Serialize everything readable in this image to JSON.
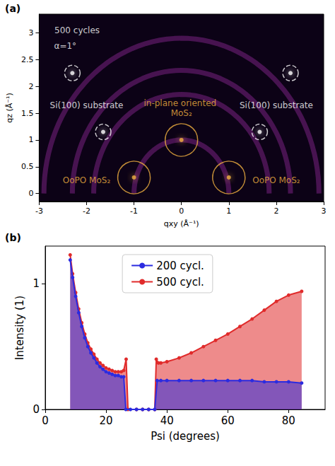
{
  "chart_data": [
    {
      "type": "scatter",
      "panel_label": "(a)",
      "x_label": "qxy (Å⁻¹)",
      "y_label": "qz (Å⁻¹)",
      "xlim": [
        -3,
        3
      ],
      "ylim": [
        -0.15,
        3.35
      ],
      "xticks": [
        -3,
        -2,
        -1,
        0,
        1,
        2,
        3
      ],
      "yticks": [
        0,
        0.5,
        1,
        1.5,
        2,
        2.5,
        3
      ],
      "grid": false,
      "tick_labels": true,
      "rings": [
        1.0,
        1.85,
        2.3,
        2.9
      ],
      "series": [
        {
          "color": "#ffffff",
          "marker": "circle",
          "line_style": "dashed",
          "x": [
            -2.3,
            -1.65,
            1.65,
            2.3
          ],
          "y": [
            2.25,
            1.15,
            1.15,
            2.25
          ]
        },
        {
          "color": "#f0b040",
          "marker": "circle",
          "line_style": "solid",
          "x": [
            0
          ],
          "y": [
            1.0
          ]
        },
        {
          "color": "#f0b040",
          "marker": "circle",
          "line_style": "solid",
          "x": [
            -1,
            1
          ],
          "y": [
            0.3,
            0.3
          ]
        }
      ],
      "annotations": [
        {
          "text": "500 cycles",
          "x": -2.2,
          "y": 3.05,
          "color": "#ffffff"
        },
        {
          "text": "α=1°",
          "x": -2.45,
          "y": 2.75,
          "color": "#ffffff"
        },
        {
          "text": "Si(100) substrate",
          "x": -2.0,
          "y": 1.65,
          "color": "#ffffff"
        },
        {
          "text": "Si(100) substrate",
          "x": 2.0,
          "y": 1.65,
          "color": "#ffffff"
        },
        {
          "text": "in-plane oriented MoS₂",
          "x": 0,
          "y": 1.6,
          "color": "#f0b040"
        },
        {
          "text": "OoPO MoS₂",
          "x": -2.0,
          "y": 0.25,
          "color": "#f0b040"
        },
        {
          "text": "OoPO MoS₂",
          "x": 2.0,
          "y": 0.25,
          "color": "#f0b040"
        }
      ]
    },
    {
      "type": "line",
      "panel_label": "(b)",
      "x_label": "Psi (degrees)",
      "y_label": "Intensity (1)",
      "xlim": [
        0,
        92
      ],
      "ylim": [
        0,
        1.3
      ],
      "xticks": [
        0,
        20,
        40,
        60,
        80
      ],
      "yticks": [
        0,
        1
      ],
      "grid": false,
      "legend": "upper center",
      "series": [
        {
          "name": "200 cycl.",
          "color": "#2b2be0",
          "marker": "circle",
          "x": [
            8.2,
            9,
            10,
            11,
            12,
            13,
            14,
            15,
            16,
            17,
            18,
            19,
            20,
            21,
            22,
            23,
            24,
            25,
            25.8,
            26.5,
            28,
            30,
            32,
            34,
            36,
            36.8,
            38,
            40,
            44,
            48,
            52,
            56,
            60,
            64,
            68,
            72,
            76,
            80,
            84.3
          ],
          "values": [
            1.19,
            1.05,
            0.9,
            0.77,
            0.66,
            0.57,
            0.5,
            0.45,
            0.41,
            0.37,
            0.34,
            0.32,
            0.3,
            0.29,
            0.28,
            0.27,
            0.27,
            0.26,
            0.26,
            0,
            0,
            0,
            0,
            0,
            0,
            0.23,
            0.23,
            0.23,
            0.23,
            0.23,
            0.23,
            0.23,
            0.23,
            0.23,
            0.23,
            0.22,
            0.22,
            0.22,
            0.21
          ]
        },
        {
          "name": "500 cycl.",
          "color": "#e02b2b",
          "marker": "circle",
          "x": [
            8.2,
            9,
            10,
            11,
            12,
            13,
            14,
            15,
            16,
            17,
            18,
            19,
            20,
            21,
            22,
            23,
            24,
            25,
            25.8,
            26.6,
            27.2,
            30,
            32,
            34,
            36,
            36.5,
            37.2,
            38,
            40,
            44,
            48,
            52,
            56,
            60,
            64,
            68,
            72,
            76,
            80,
            84.3
          ],
          "values": [
            1.23,
            1.08,
            0.93,
            0.8,
            0.69,
            0.6,
            0.53,
            0.48,
            0.44,
            0.4,
            0.37,
            0.35,
            0.33,
            0.32,
            0.31,
            0.3,
            0.3,
            0.3,
            0.31,
            0.4,
            0,
            0,
            0,
            0,
            0,
            0.4,
            0.37,
            0.37,
            0.38,
            0.41,
            0.45,
            0.5,
            0.55,
            0.6,
            0.66,
            0.72,
            0.79,
            0.86,
            0.91,
            0.94
          ]
        }
      ]
    }
  ]
}
